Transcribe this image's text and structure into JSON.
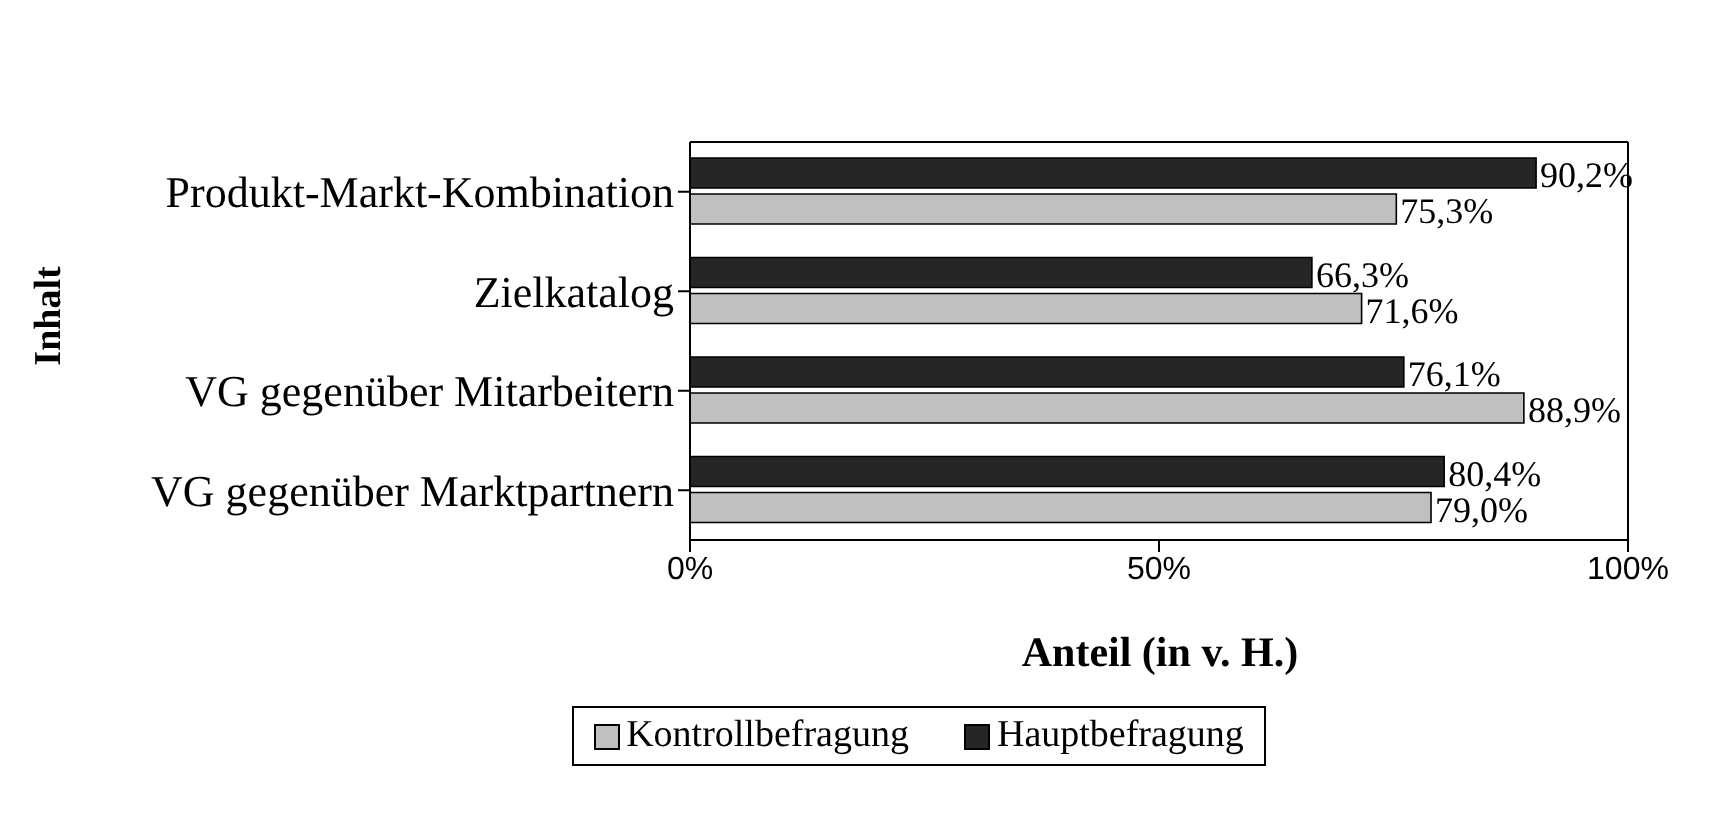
{
  "chart_data": {
    "type": "bar",
    "orientation": "horizontal",
    "ylabel": "Inhalt",
    "xlabel": "Anteil (in v. H.)",
    "categories": [
      "Produkt-Markt-Kombination",
      "Zielkatalog",
      "VG gegenüber Mitarbeitern",
      "VG gegenüber Marktpartnern"
    ],
    "series": [
      {
        "name": "Hauptbefragung",
        "color": "#262626",
        "values": [
          90.2,
          66.3,
          76.1,
          80.4
        ],
        "value_labels": [
          "90,2%",
          "66,3%",
          "76,1%",
          "80,4%"
        ]
      },
      {
        "name": "Kontrollbefragung",
        "color": "#c0c0c0",
        "values": [
          75.3,
          71.6,
          88.9,
          79.0
        ],
        "value_labels": [
          "75,3%",
          "71,6%",
          "88,9%",
          "79,0%"
        ]
      }
    ],
    "xlim": [
      0,
      100
    ],
    "xticks": [
      {
        "value": 0,
        "label": "0%"
      },
      {
        "value": 50,
        "label": "50%"
      },
      {
        "value": 100,
        "label": "100%"
      }
    ],
    "grid": false,
    "legend": "bottom"
  }
}
